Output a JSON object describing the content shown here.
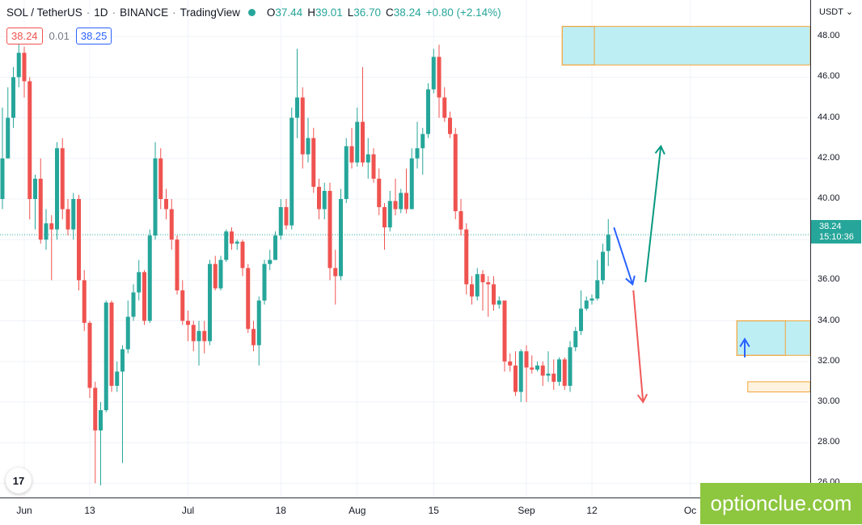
{
  "header": {
    "symbol": "SOL / TetherUS",
    "interval": "1D",
    "exchange": "BINANCE",
    "platform": "TradingView",
    "sep": "·",
    "open_label": "O",
    "open": "37.44",
    "high_label": "H",
    "high": "39.01",
    "low_label": "L",
    "low": "36.70",
    "close_label": "C",
    "close": "38.24",
    "change": "+0.80 (+2.14%)",
    "sell_price": "38.24",
    "spread": "0.01",
    "buy_price": "38.25"
  },
  "price_axis": {
    "currency": "USDT",
    "currency_icon": "chevron-down-icon",
    "labels": [
      "48.00",
      "46.00",
      "44.00",
      "42.00",
      "40.00",
      "38.00",
      "36.00",
      "34.00",
      "32.00",
      "30.00",
      "28.00",
      "26.00"
    ],
    "current_price": "38.24",
    "countdown": "15:10:36"
  },
  "time_axis": {
    "labels": [
      "Jun",
      "13",
      "Jul",
      "18",
      "Aug",
      "15",
      "Sep",
      "12",
      "Oc"
    ]
  },
  "watermark": "optionclue.com",
  "logo_text": "17",
  "colors": {
    "up": "#26a69a",
    "down": "#ef5350",
    "zone_fill": "#b2ebf2",
    "zone_border": "#f4a43a",
    "support_fill": "#fff3e0",
    "arrow_blue": "#2962ff",
    "arrow_teal": "#089981",
    "arrow_red": "#f05a5a"
  },
  "chart_data": {
    "type": "candlestick",
    "ylim": [
      25.3,
      49.8
    ],
    "candles": [
      [
        40.0,
        42.0,
        39.5,
        44.5
      ],
      [
        42.0,
        44.0,
        42.0,
        45.5
      ],
      [
        44.0,
        46.0,
        43.5,
        46.5
      ],
      [
        46.0,
        47.2,
        45.5,
        47.8
      ],
      [
        47.2,
        45.8,
        45.0,
        47.5
      ],
      [
        45.8,
        40.0,
        39.0,
        46.0
      ],
      [
        40.0,
        41.0,
        38.5,
        41.2
      ],
      [
        41.0,
        38.0,
        37.8,
        42.0
      ],
      [
        38.0,
        38.8,
        37.5,
        39.5
      ],
      [
        38.8,
        38.5,
        36.0,
        39.2
      ],
      [
        38.5,
        42.5,
        38.0,
        42.8
      ],
      [
        42.5,
        39.5,
        39.0,
        43.0
      ],
      [
        39.5,
        38.5,
        38.2,
        40.0
      ],
      [
        38.5,
        40.0,
        38.0,
        40.3
      ],
      [
        40.0,
        36.0,
        35.5,
        40.2
      ],
      [
        36.0,
        33.9,
        33.5,
        36.5
      ],
      [
        33.9,
        30.7,
        30.2,
        34.0
      ],
      [
        30.7,
        28.6,
        26.0,
        31.0
      ],
      [
        28.6,
        29.6,
        25.9,
        30.0
      ],
      [
        29.6,
        34.9,
        29.5,
        35.0
      ],
      [
        34.9,
        30.8,
        30.5,
        35.0
      ],
      [
        30.8,
        31.5,
        30.5,
        32.0
      ],
      [
        31.5,
        32.6,
        27.0,
        32.8
      ],
      [
        32.6,
        34.2,
        32.4,
        35.0
      ],
      [
        34.2,
        35.4,
        34.0,
        35.8
      ],
      [
        35.4,
        36.4,
        35.0,
        37.0
      ],
      [
        36.4,
        34.0,
        33.8,
        36.5
      ],
      [
        34.0,
        38.2,
        33.9,
        38.5
      ],
      [
        38.2,
        42.0,
        38.0,
        42.8
      ],
      [
        42.0,
        40.0,
        39.5,
        42.5
      ],
      [
        40.0,
        39.5,
        39.0,
        40.5
      ],
      [
        39.5,
        38.0,
        37.5,
        40.0
      ],
      [
        38.0,
        35.5,
        35.3,
        38.2
      ],
      [
        35.5,
        34.0,
        33.8,
        36.0
      ],
      [
        34.0,
        33.8,
        33.0,
        34.5
      ],
      [
        33.8,
        33.0,
        32.5,
        34.0
      ],
      [
        33.0,
        33.5,
        31.8,
        34.0
      ],
      [
        33.5,
        33.0,
        32.4,
        34.0
      ],
      [
        33.0,
        36.8,
        32.8,
        37.0
      ],
      [
        36.8,
        35.6,
        35.5,
        37.2
      ],
      [
        35.6,
        37.0,
        35.5,
        37.2
      ],
      [
        37.0,
        38.4,
        36.9,
        38.5
      ],
      [
        38.4,
        37.8,
        37.5,
        38.6
      ],
      [
        37.8,
        37.9,
        37.5,
        38.0
      ],
      [
        37.9,
        36.6,
        36.2,
        38.0
      ],
      [
        36.6,
        33.6,
        33.4,
        36.8
      ],
      [
        33.6,
        32.8,
        32.5,
        34.0
      ],
      [
        32.8,
        35.0,
        31.8,
        35.2
      ],
      [
        35.0,
        36.8,
        34.8,
        37.0
      ],
      [
        36.8,
        37.0,
        36.5,
        37.5
      ],
      [
        37.0,
        38.2,
        37.0,
        38.4
      ],
      [
        38.2,
        39.6,
        38.0,
        40.0
      ],
      [
        39.6,
        38.7,
        38.5,
        40.0
      ],
      [
        38.7,
        44.0,
        38.5,
        44.5
      ],
      [
        44.0,
        45.0,
        43.0,
        47.4
      ],
      [
        45.0,
        42.2,
        41.5,
        45.5
      ],
      [
        42.2,
        43.0,
        41.8,
        44.0
      ],
      [
        43.0,
        40.6,
        40.3,
        43.5
      ],
      [
        40.6,
        39.5,
        39.0,
        41.0
      ],
      [
        39.5,
        40.4,
        39.0,
        40.8
      ],
      [
        40.4,
        36.6,
        36.0,
        40.8
      ],
      [
        36.6,
        36.2,
        34.8,
        37.5
      ],
      [
        36.2,
        40.0,
        36.0,
        40.5
      ],
      [
        40.0,
        42.6,
        39.8,
        43.0
      ],
      [
        42.6,
        41.8,
        41.5,
        43.5
      ],
      [
        41.8,
        43.8,
        41.6,
        44.5
      ],
      [
        43.8,
        41.8,
        41.6,
        46.5
      ],
      [
        41.8,
        42.2,
        41.0,
        43.0
      ],
      [
        42.2,
        41.0,
        40.8,
        42.5
      ],
      [
        41.0,
        39.6,
        39.2,
        41.5
      ],
      [
        39.6,
        38.6,
        37.5,
        39.8
      ],
      [
        38.6,
        39.9,
        38.4,
        40.4
      ],
      [
        39.9,
        39.5,
        39.2,
        41.0
      ],
      [
        39.5,
        40.3,
        39.3,
        40.5
      ],
      [
        40.3,
        39.5,
        39.3,
        41.5
      ],
      [
        39.5,
        42.0,
        39.5,
        42.5
      ],
      [
        42.0,
        42.5,
        41.5,
        43.8
      ],
      [
        42.5,
        43.2,
        41.2,
        43.5
      ],
      [
        43.2,
        45.4,
        43.0,
        45.7
      ],
      [
        45.4,
        47.0,
        45.2,
        47.4
      ],
      [
        47.0,
        45.0,
        44.0,
        47.6
      ],
      [
        45.0,
        44.0,
        43.8,
        45.5
      ],
      [
        44.0,
        43.2,
        43.0,
        44.3
      ],
      [
        43.2,
        39.4,
        39.0,
        43.5
      ],
      [
        39.4,
        38.5,
        38.2,
        40.0
      ],
      [
        38.5,
        35.8,
        35.3,
        38.8
      ],
      [
        35.8,
        35.2,
        34.8,
        36.2
      ],
      [
        35.2,
        36.3,
        35.0,
        36.6
      ],
      [
        36.3,
        35.9,
        34.5,
        36.5
      ],
      [
        35.9,
        35.8,
        34.2,
        36.2
      ],
      [
        35.8,
        34.8,
        34.5,
        36.2
      ],
      [
        34.8,
        35.0,
        34.6,
        35.2
      ],
      [
        35.0,
        32.0,
        31.5,
        35.0
      ],
      [
        32.0,
        31.8,
        31.5,
        32.4
      ],
      [
        31.8,
        30.5,
        30.3,
        32.5
      ],
      [
        30.5,
        32.5,
        30.0,
        32.6
      ],
      [
        32.5,
        31.7,
        30.0,
        32.8
      ],
      [
        31.7,
        31.6,
        31.4,
        32.3
      ],
      [
        31.6,
        31.8,
        31.5,
        32.0
      ],
      [
        31.8,
        31.3,
        30.8,
        32.0
      ],
      [
        31.3,
        31.4,
        31.0,
        32.5
      ],
      [
        31.4,
        31.0,
        30.6,
        32.1
      ],
      [
        31.0,
        32.1,
        30.8,
        32.2
      ],
      [
        32.1,
        30.8,
        30.6,
        32.2
      ],
      [
        30.8,
        32.7,
        30.5,
        33.0
      ],
      [
        32.7,
        33.5,
        32.5,
        33.7
      ],
      [
        33.5,
        34.6,
        33.3,
        35.5
      ],
      [
        34.6,
        35.0,
        34.5,
        35.2
      ],
      [
        35.0,
        35.1,
        34.8,
        35.3
      ],
      [
        35.1,
        36.0,
        35.0,
        37.0
      ],
      [
        36.0,
        37.4,
        35.8,
        37.8
      ],
      [
        37.44,
        38.24,
        36.7,
        39.01
      ]
    ],
    "zones": [
      {
        "y1": 46.6,
        "y2": 48.5,
        "x_start_index": 103,
        "inner_end_index": 108
      },
      {
        "y1": 32.3,
        "y2": 34.0,
        "x_start_index": 135,
        "inner_end_index": 143
      },
      {
        "y1": 30.5,
        "y2": 31.0,
        "x_start_index": 137,
        "inner_end_index": 137
      }
    ]
  }
}
